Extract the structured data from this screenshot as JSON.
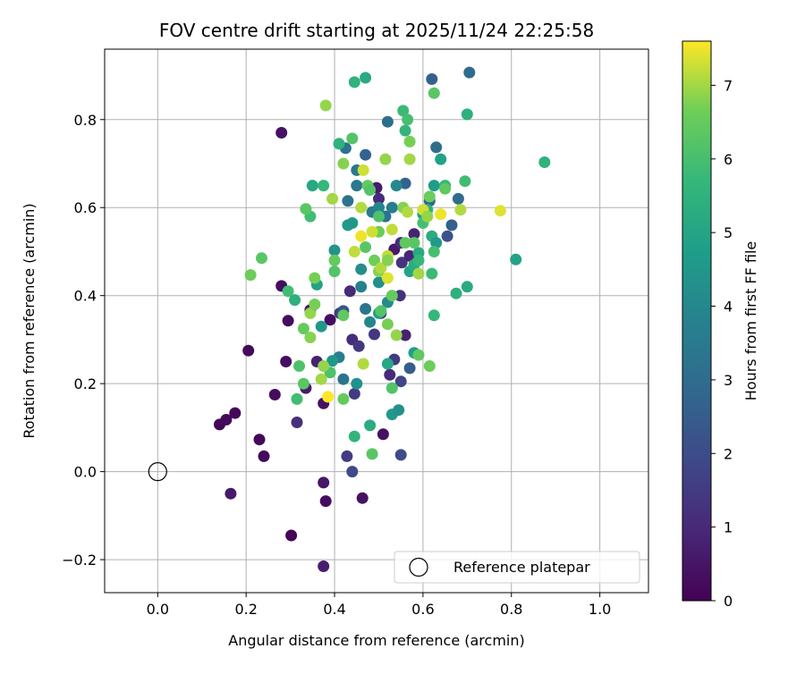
{
  "chart_data": {
    "type": "scatter",
    "title": "FOV centre drift starting at 2025/11/24 22:25:58",
    "xlabel": "Angular distance from reference (arcmin)",
    "ylabel": "Rotation from reference (arcmin)",
    "xlim": [
      -0.12,
      1.11
    ],
    "ylim": [
      -0.275,
      0.96
    ],
    "xticks": [
      0.0,
      0.2,
      0.4,
      0.6,
      0.8,
      1.0
    ],
    "xtick_labels": [
      "0.0",
      "0.2",
      "0.4",
      "0.6",
      "0.8",
      "1.0"
    ],
    "yticks": [
      -0.2,
      0.0,
      0.2,
      0.4,
      0.6,
      0.8
    ],
    "ytick_labels": [
      "−0.2",
      "0.0",
      "0.2",
      "0.4",
      "0.6",
      "0.8"
    ],
    "grid": true,
    "colorbar": {
      "label": "Hours from first FF file",
      "range": [
        0,
        7.6
      ],
      "ticks": [
        0,
        1,
        2,
        3,
        4,
        5,
        6,
        7
      ],
      "tick_labels": [
        "0",
        "1",
        "2",
        "3",
        "4",
        "5",
        "6",
        "7"
      ],
      "colormap": "viridis"
    },
    "legend": {
      "position": "lower-right",
      "entries": [
        "Reference platepar"
      ]
    },
    "reference_point": {
      "x": 0.0,
      "y": 0.0,
      "label": "Reference platepar"
    },
    "points": [
      [
        0.14,
        0.107,
        0.1
      ],
      [
        0.155,
        0.118,
        0.2
      ],
      [
        0.175,
        0.133,
        0.15
      ],
      [
        0.165,
        -0.05,
        0.6
      ],
      [
        0.205,
        0.275,
        0.2
      ],
      [
        0.23,
        0.073,
        0.15
      ],
      [
        0.24,
        0.035,
        0.2
      ],
      [
        0.265,
        0.175,
        0.3
      ],
      [
        0.28,
        0.422,
        0.3
      ],
      [
        0.28,
        0.77,
        0.4
      ],
      [
        0.29,
        0.25,
        0.3
      ],
      [
        0.295,
        0.343,
        0.3
      ],
      [
        0.302,
        -0.145,
        0.1
      ],
      [
        0.315,
        0.112,
        1.2
      ],
      [
        0.335,
        0.19,
        0.6
      ],
      [
        0.345,
        0.367,
        0.5
      ],
      [
        0.36,
        0.25,
        0.8
      ],
      [
        0.375,
        0.155,
        0.4
      ],
      [
        0.375,
        -0.025,
        0.5
      ],
      [
        0.38,
        -0.067,
        0.3
      ],
      [
        0.375,
        -0.215,
        0.7
      ],
      [
        0.39,
        0.345,
        0.3
      ],
      [
        0.412,
        0.36,
        1.5
      ],
      [
        0.428,
        0.035,
        1.5
      ],
      [
        0.44,
        0.0,
        1.9
      ],
      [
        0.445,
        0.177,
        1.5
      ],
      [
        0.44,
        0.3,
        1.1
      ],
      [
        0.455,
        0.285,
        1.4
      ],
      [
        0.463,
        -0.06,
        0.4
      ],
      [
        0.435,
        0.41,
        1.0
      ],
      [
        0.49,
        0.312,
        1.4
      ],
      [
        0.505,
        0.36,
        1.3
      ],
      [
        0.51,
        0.085,
        0.4
      ],
      [
        0.525,
        0.22,
        1.0
      ],
      [
        0.55,
        0.038,
        2.0
      ],
      [
        0.55,
        0.205,
        1.8
      ],
      [
        0.548,
        0.4,
        1.2
      ],
      [
        0.552,
        0.475,
        1.3
      ],
      [
        0.57,
        0.49,
        0.9
      ],
      [
        0.58,
        0.54,
        0.8
      ],
      [
        0.535,
        0.505,
        0.6
      ],
      [
        0.55,
        0.52,
        1.1
      ],
      [
        0.56,
        0.31,
        0.8
      ],
      [
        0.57,
        0.235,
        2.5
      ],
      [
        0.535,
        0.255,
        1.5
      ],
      [
        0.495,
        0.645,
        0.6
      ],
      [
        0.5,
        0.62,
        1.0
      ],
      [
        0.62,
        0.892,
        2.7
      ],
      [
        0.705,
        0.907,
        3.0
      ],
      [
        0.655,
        0.535,
        2.2
      ],
      [
        0.665,
        0.56,
        2.6
      ],
      [
        0.68,
        0.62,
        3.0
      ],
      [
        0.63,
        0.737,
        3.1
      ],
      [
        0.615,
        0.615,
        2.8
      ],
      [
        0.47,
        0.72,
        2.7
      ],
      [
        0.52,
        0.795,
        3.1
      ],
      [
        0.56,
        0.655,
        2.7
      ],
      [
        0.485,
        0.59,
        3.5
      ],
      [
        0.43,
        0.615,
        3.2
      ],
      [
        0.425,
        0.735,
        3.2
      ],
      [
        0.45,
        0.685,
        3.5
      ],
      [
        0.45,
        0.65,
        3.4
      ],
      [
        0.5,
        0.6,
        3.9
      ],
      [
        0.515,
        0.58,
        3.3
      ],
      [
        0.53,
        0.6,
        3.6
      ],
      [
        0.54,
        0.65,
        4.0
      ],
      [
        0.43,
        0.56,
        4.6
      ],
      [
        0.44,
        0.565,
        4.5
      ],
      [
        0.4,
        0.503,
        4.4
      ],
      [
        0.42,
        0.365,
        2.2
      ],
      [
        0.46,
        0.42,
        3.7
      ],
      [
        0.47,
        0.37,
        3.3
      ],
      [
        0.48,
        0.34,
        3.9
      ],
      [
        0.5,
        0.36,
        4.8
      ],
      [
        0.46,
        0.46,
        4.2
      ],
      [
        0.5,
        0.43,
        4.3
      ],
      [
        0.52,
        0.385,
        4.1
      ],
      [
        0.41,
        0.26,
        3.6
      ],
      [
        0.42,
        0.21,
        3.3
      ],
      [
        0.395,
        0.252,
        4.5
      ],
      [
        0.45,
        0.2,
        4.3
      ],
      [
        0.53,
        0.13,
        4.6
      ],
      [
        0.545,
        0.14,
        4.3
      ],
      [
        0.58,
        0.27,
        4.8
      ],
      [
        0.52,
        0.245,
        5.1
      ],
      [
        0.6,
        0.585,
        4.9
      ],
      [
        0.61,
        0.595,
        5.5
      ],
      [
        0.62,
        0.535,
        5.3
      ],
      [
        0.63,
        0.52,
        4.6
      ],
      [
        0.57,
        0.455,
        5.0
      ],
      [
        0.58,
        0.47,
        5.3
      ],
      [
        0.64,
        0.71,
        4.9
      ],
      [
        0.625,
        0.65,
        4.7
      ],
      [
        0.65,
        0.65,
        5.6
      ],
      [
        0.59,
        0.497,
        5.2
      ],
      [
        0.37,
        0.33,
        4.5
      ],
      [
        0.36,
        0.425,
        4.9
      ],
      [
        0.31,
        0.39,
        5.4
      ],
      [
        0.295,
        0.41,
        5.9
      ],
      [
        0.35,
        0.65,
        5.1
      ],
      [
        0.375,
        0.65,
        5.7
      ],
      [
        0.345,
        0.58,
        5.9
      ],
      [
        0.335,
        0.597,
        6.3
      ],
      [
        0.41,
        0.745,
        5.5
      ],
      [
        0.44,
        0.757,
        6.2
      ],
      [
        0.445,
        0.885,
        5.5
      ],
      [
        0.47,
        0.895,
        5.2
      ],
      [
        0.555,
        0.82,
        5.8
      ],
      [
        0.56,
        0.775,
        5.6
      ],
      [
        0.565,
        0.8,
        6.0
      ],
      [
        0.57,
        0.75,
        6.7
      ],
      [
        0.625,
        0.86,
        6.3
      ],
      [
        0.7,
        0.812,
        5.4
      ],
      [
        0.7,
        0.42,
        5.2
      ],
      [
        0.675,
        0.405,
        5.4
      ],
      [
        0.81,
        0.482,
        4.9
      ],
      [
        0.875,
        0.703,
        5.5
      ],
      [
        0.695,
        0.66,
        5.9
      ],
      [
        0.65,
        0.643,
        6.4
      ],
      [
        0.625,
        0.355,
        5.7
      ],
      [
        0.62,
        0.45,
        5.8
      ],
      [
        0.625,
        0.5,
        6.0
      ],
      [
        0.6,
        0.565,
        6.0
      ],
      [
        0.59,
        0.48,
        5.7
      ],
      [
        0.58,
        0.52,
        6.3
      ],
      [
        0.56,
        0.52,
        6.4
      ],
      [
        0.555,
        0.6,
        6.8
      ],
      [
        0.5,
        0.545,
        6.6
      ],
      [
        0.475,
        0.65,
        6.5
      ],
      [
        0.48,
        0.64,
        6.2
      ],
      [
        0.47,
        0.51,
        6.3
      ],
      [
        0.49,
        0.48,
        6.6
      ],
      [
        0.5,
        0.455,
        6.8
      ],
      [
        0.505,
        0.365,
        6.2
      ],
      [
        0.53,
        0.4,
        6.5
      ],
      [
        0.52,
        0.335,
        6.7
      ],
      [
        0.54,
        0.31,
        6.9
      ],
      [
        0.59,
        0.265,
        6.4
      ],
      [
        0.615,
        0.24,
        6.6
      ],
      [
        0.53,
        0.19,
        6.2
      ],
      [
        0.445,
        0.08,
        5.6
      ],
      [
        0.48,
        0.105,
        5.3
      ],
      [
        0.485,
        0.04,
        6.3
      ],
      [
        0.42,
        0.165,
        6.5
      ],
      [
        0.39,
        0.225,
        6.1
      ],
      [
        0.33,
        0.2,
        6.3
      ],
      [
        0.32,
        0.24,
        6.1
      ],
      [
        0.315,
        0.165,
        5.9
      ],
      [
        0.33,
        0.325,
        6.5
      ],
      [
        0.345,
        0.305,
        6.8
      ],
      [
        0.345,
        0.36,
        6.9
      ],
      [
        0.355,
        0.38,
        6.7
      ],
      [
        0.375,
        0.24,
        6.9
      ],
      [
        0.37,
        0.21,
        7.0
      ],
      [
        0.385,
        0.17,
        7.6
      ],
      [
        0.465,
        0.245,
        7.1
      ],
      [
        0.4,
        0.455,
        6.2
      ],
      [
        0.4,
        0.48,
        6.5
      ],
      [
        0.42,
        0.355,
        6.4
      ],
      [
        0.355,
        0.44,
        6.7
      ],
      [
        0.21,
        0.447,
        6.6
      ],
      [
        0.235,
        0.485,
        6.3
      ],
      [
        0.38,
        0.832,
        6.9
      ],
      [
        0.395,
        0.62,
        7.0
      ],
      [
        0.42,
        0.7,
        6.8
      ],
      [
        0.46,
        0.6,
        7.1
      ],
      [
        0.485,
        0.545,
        7.3
      ],
      [
        0.46,
        0.535,
        7.5
      ],
      [
        0.445,
        0.5,
        7.2
      ],
      [
        0.465,
        0.685,
        7.3
      ],
      [
        0.515,
        0.71,
        6.9
      ],
      [
        0.57,
        0.71,
        7.0
      ],
      [
        0.565,
        0.59,
        7.1
      ],
      [
        0.6,
        0.595,
        7.3
      ],
      [
        0.61,
        0.58,
        6.9
      ],
      [
        0.64,
        0.585,
        7.5
      ],
      [
        0.685,
        0.595,
        7.1
      ],
      [
        0.775,
        0.593,
        7.4
      ],
      [
        0.52,
        0.49,
        7.2
      ],
      [
        0.52,
        0.44,
        7.4
      ],
      [
        0.505,
        0.463,
        7.1
      ],
      [
        0.52,
        0.48,
        6.8
      ],
      [
        0.53,
        0.55,
        7.2
      ],
      [
        0.59,
        0.45,
        7.0
      ],
      [
        0.615,
        0.625,
        6.6
      ],
      [
        0.5,
        0.58,
        6.1
      ]
    ]
  }
}
